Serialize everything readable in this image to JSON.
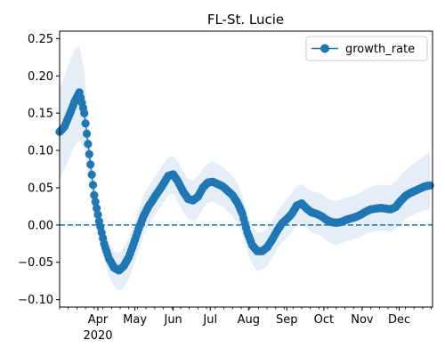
{
  "chart_data": {
    "type": "line",
    "title": "FL-St. Lucie",
    "xlabel": "",
    "ylabel": "",
    "x_axis_type": "date",
    "xlim": [
      "2020-03-01",
      "2020-12-28"
    ],
    "ylim": [
      -0.11,
      0.26
    ],
    "y_ticks": [
      -0.1,
      -0.05,
      0.0,
      0.05,
      0.1,
      0.15,
      0.2,
      0.25
    ],
    "y_tick_labels": [
      "−0.10",
      "−0.05",
      "0.00",
      "0.05",
      "0.10",
      "0.15",
      "0.20",
      "0.25"
    ],
    "x_ticks": [
      {
        "date": "2020-04-01",
        "label": "Apr",
        "sublabel": "2020"
      },
      {
        "date": "2020-05-01",
        "label": "May",
        "sublabel": ""
      },
      {
        "date": "2020-06-01",
        "label": "Jun",
        "sublabel": ""
      },
      {
        "date": "2020-07-01",
        "label": "Jul",
        "sublabel": ""
      },
      {
        "date": "2020-08-01",
        "label": "Aug",
        "sublabel": ""
      },
      {
        "date": "2020-09-01",
        "label": "Sep",
        "sublabel": ""
      },
      {
        "date": "2020-10-01",
        "label": "Oct",
        "sublabel": ""
      },
      {
        "date": "2020-11-01",
        "label": "Nov",
        "sublabel": ""
      },
      {
        "date": "2020-12-01",
        "label": "Dec",
        "sublabel": ""
      }
    ],
    "legend": {
      "position": "top-right",
      "entries": [
        "growth_rate"
      ]
    },
    "reference_line": {
      "y": 0.0,
      "style": "dashed",
      "color": "#1f77b4"
    },
    "series": [
      {
        "name": "growth_rate",
        "color": "#1f77b4",
        "band_color": "#cfe0f1",
        "points": [
          {
            "x": "2020-03-01",
            "y": 0.125,
            "lo": 0.06,
            "hi": 0.185
          },
          {
            "x": "2020-03-05",
            "y": 0.132,
            "lo": 0.075,
            "hi": 0.2
          },
          {
            "x": "2020-03-09",
            "y": 0.148,
            "lo": 0.09,
            "hi": 0.22
          },
          {
            "x": "2020-03-13",
            "y": 0.165,
            "lo": 0.105,
            "hi": 0.235
          },
          {
            "x": "2020-03-17",
            "y": 0.178,
            "lo": 0.115,
            "hi": 0.242
          },
          {
            "x": "2020-03-21",
            "y": 0.15,
            "lo": 0.1,
            "hi": 0.205
          },
          {
            "x": "2020-03-25",
            "y": 0.095,
            "lo": 0.06,
            "hi": 0.13
          },
          {
            "x": "2020-03-29",
            "y": 0.04,
            "lo": 0.015,
            "hi": 0.065
          },
          {
            "x": "2020-04-02",
            "y": 0.005,
            "lo": -0.015,
            "hi": 0.025
          },
          {
            "x": "2020-04-06",
            "y": -0.025,
            "lo": -0.045,
            "hi": -0.005
          },
          {
            "x": "2020-04-10",
            "y": -0.045,
            "lo": -0.068,
            "hi": -0.022
          },
          {
            "x": "2020-04-14",
            "y": -0.057,
            "lo": -0.082,
            "hi": -0.035
          },
          {
            "x": "2020-04-18",
            "y": -0.061,
            "lo": -0.088,
            "hi": -0.038
          },
          {
            "x": "2020-04-22",
            "y": -0.055,
            "lo": -0.084,
            "hi": -0.03
          },
          {
            "x": "2020-04-26",
            "y": -0.043,
            "lo": -0.072,
            "hi": -0.018
          },
          {
            "x": "2020-04-30",
            "y": -0.025,
            "lo": -0.055,
            "hi": 0.0
          },
          {
            "x": "2020-05-04",
            "y": -0.005,
            "lo": -0.035,
            "hi": 0.02
          },
          {
            "x": "2020-05-08",
            "y": 0.012,
            "lo": -0.015,
            "hi": 0.04
          },
          {
            "x": "2020-05-12",
            "y": 0.025,
            "lo": 0.0,
            "hi": 0.052
          },
          {
            "x": "2020-05-16",
            "y": 0.035,
            "lo": 0.01,
            "hi": 0.062
          },
          {
            "x": "2020-05-20",
            "y": 0.045,
            "lo": 0.02,
            "hi": 0.072
          },
          {
            "x": "2020-05-24",
            "y": 0.055,
            "lo": 0.03,
            "hi": 0.082
          },
          {
            "x": "2020-05-28",
            "y": 0.066,
            "lo": 0.04,
            "hi": 0.09
          },
          {
            "x": "2020-06-01",
            "y": 0.068,
            "lo": 0.042,
            "hi": 0.093
          },
          {
            "x": "2020-06-05",
            "y": 0.058,
            "lo": 0.03,
            "hi": 0.085
          },
          {
            "x": "2020-06-09",
            "y": 0.045,
            "lo": 0.018,
            "hi": 0.072
          },
          {
            "x": "2020-06-13",
            "y": 0.035,
            "lo": 0.008,
            "hi": 0.062
          },
          {
            "x": "2020-06-17",
            "y": 0.033,
            "lo": 0.005,
            "hi": 0.06
          },
          {
            "x": "2020-06-21",
            "y": 0.038,
            "lo": 0.01,
            "hi": 0.066
          },
          {
            "x": "2020-06-25",
            "y": 0.05,
            "lo": 0.022,
            "hi": 0.076
          },
          {
            "x": "2020-06-29",
            "y": 0.057,
            "lo": 0.03,
            "hi": 0.083
          },
          {
            "x": "2020-07-03",
            "y": 0.058,
            "lo": 0.032,
            "hi": 0.086
          },
          {
            "x": "2020-07-07",
            "y": 0.055,
            "lo": 0.028,
            "hi": 0.082
          },
          {
            "x": "2020-07-11",
            "y": 0.052,
            "lo": 0.025,
            "hi": 0.078
          },
          {
            "x": "2020-07-15",
            "y": 0.046,
            "lo": 0.018,
            "hi": 0.072
          },
          {
            "x": "2020-07-19",
            "y": 0.04,
            "lo": 0.012,
            "hi": 0.066
          },
          {
            "x": "2020-07-23",
            "y": 0.03,
            "lo": 0.002,
            "hi": 0.056
          },
          {
            "x": "2020-07-27",
            "y": 0.015,
            "lo": -0.012,
            "hi": 0.04
          },
          {
            "x": "2020-07-31",
            "y": -0.01,
            "lo": -0.036,
            "hi": 0.015
          },
          {
            "x": "2020-08-04",
            "y": -0.027,
            "lo": -0.052,
            "hi": -0.003
          },
          {
            "x": "2020-08-08",
            "y": -0.035,
            "lo": -0.062,
            "hi": -0.01
          },
          {
            "x": "2020-08-12",
            "y": -0.035,
            "lo": -0.06,
            "hi": -0.01
          },
          {
            "x": "2020-08-16",
            "y": -0.03,
            "lo": -0.055,
            "hi": -0.005
          },
          {
            "x": "2020-08-20",
            "y": -0.02,
            "lo": -0.045,
            "hi": 0.005
          },
          {
            "x": "2020-08-24",
            "y": -0.008,
            "lo": -0.033,
            "hi": 0.017
          },
          {
            "x": "2020-08-28",
            "y": 0.002,
            "lo": -0.023,
            "hi": 0.027
          },
          {
            "x": "2020-09-01",
            "y": 0.008,
            "lo": -0.017,
            "hi": 0.034
          },
          {
            "x": "2020-09-05",
            "y": 0.015,
            "lo": -0.01,
            "hi": 0.042
          },
          {
            "x": "2020-09-09",
            "y": 0.026,
            "lo": 0.0,
            "hi": 0.052
          },
          {
            "x": "2020-09-13",
            "y": 0.029,
            "lo": 0.003,
            "hi": 0.055
          },
          {
            "x": "2020-09-17",
            "y": 0.022,
            "lo": -0.004,
            "hi": 0.05
          },
          {
            "x": "2020-09-21",
            "y": 0.017,
            "lo": -0.01,
            "hi": 0.045
          },
          {
            "x": "2020-09-25",
            "y": 0.015,
            "lo": -0.012,
            "hi": 0.044
          },
          {
            "x": "2020-09-29",
            "y": 0.012,
            "lo": -0.015,
            "hi": 0.042
          },
          {
            "x": "2020-10-03",
            "y": 0.007,
            "lo": -0.02,
            "hi": 0.037
          },
          {
            "x": "2020-10-07",
            "y": 0.004,
            "lo": -0.025,
            "hi": 0.033
          },
          {
            "x": "2020-10-11",
            "y": 0.003,
            "lo": -0.027,
            "hi": 0.033
          },
          {
            "x": "2020-10-15",
            "y": 0.004,
            "lo": -0.025,
            "hi": 0.034
          },
          {
            "x": "2020-10-19",
            "y": 0.007,
            "lo": -0.022,
            "hi": 0.037
          },
          {
            "x": "2020-10-23",
            "y": 0.009,
            "lo": -0.02,
            "hi": 0.039
          },
          {
            "x": "2020-10-27",
            "y": 0.011,
            "lo": -0.018,
            "hi": 0.041
          },
          {
            "x": "2020-10-31",
            "y": 0.014,
            "lo": -0.016,
            "hi": 0.044
          },
          {
            "x": "2020-11-04",
            "y": 0.018,
            "lo": -0.012,
            "hi": 0.048
          },
          {
            "x": "2020-11-08",
            "y": 0.021,
            "lo": -0.009,
            "hi": 0.051
          },
          {
            "x": "2020-11-12",
            "y": 0.022,
            "lo": -0.008,
            "hi": 0.053
          },
          {
            "x": "2020-11-16",
            "y": 0.023,
            "lo": -0.007,
            "hi": 0.054
          },
          {
            "x": "2020-11-20",
            "y": 0.022,
            "lo": -0.008,
            "hi": 0.054
          },
          {
            "x": "2020-11-24",
            "y": 0.021,
            "lo": -0.01,
            "hi": 0.053
          },
          {
            "x": "2020-11-28",
            "y": 0.024,
            "lo": -0.006,
            "hi": 0.058
          },
          {
            "x": "2020-12-02",
            "y": 0.032,
            "lo": 0.002,
            "hi": 0.066
          },
          {
            "x": "2020-12-06",
            "y": 0.039,
            "lo": 0.008,
            "hi": 0.074
          },
          {
            "x": "2020-12-10",
            "y": 0.043,
            "lo": 0.012,
            "hi": 0.079
          },
          {
            "x": "2020-12-14",
            "y": 0.046,
            "lo": 0.015,
            "hi": 0.084
          },
          {
            "x": "2020-12-18",
            "y": 0.049,
            "lo": 0.018,
            "hi": 0.089
          },
          {
            "x": "2020-12-22",
            "y": 0.052,
            "lo": 0.02,
            "hi": 0.094
          },
          {
            "x": "2020-12-26",
            "y": 0.053,
            "lo": 0.021,
            "hi": 0.098
          }
        ]
      }
    ]
  }
}
